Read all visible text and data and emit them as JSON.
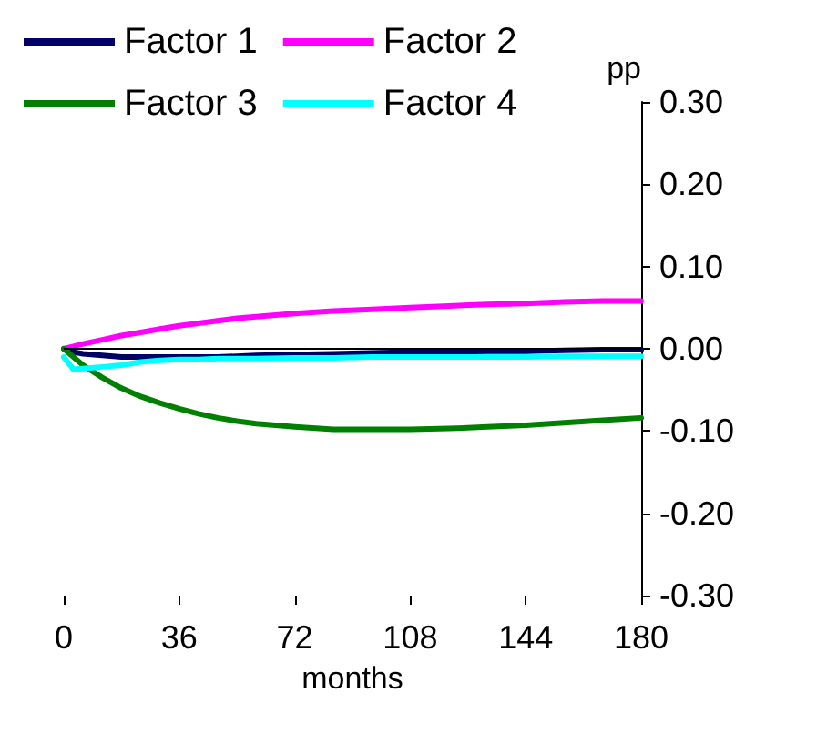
{
  "chart_data": {
    "type": "line",
    "xlabel": "months",
    "ylabel": "pp",
    "x": [
      0,
      3,
      6,
      12,
      18,
      24,
      30,
      36,
      42,
      48,
      54,
      60,
      72,
      84,
      96,
      108,
      120,
      132,
      144,
      156,
      168,
      180
    ],
    "series": [
      {
        "name": "Factor 1",
        "color": "#000066",
        "values": [
          0,
          -0.004,
          -0.006,
          -0.008,
          -0.01,
          -0.01,
          -0.01,
          -0.01,
          -0.01,
          -0.01,
          -0.009,
          -0.008,
          -0.007,
          -0.006,
          -0.005,
          -0.004,
          -0.004,
          -0.003,
          -0.003,
          -0.002,
          -0.001,
          -0.001
        ]
      },
      {
        "name": "Factor 2",
        "color": "#ff00ff",
        "values": [
          0,
          0.003,
          0.006,
          0.011,
          0.016,
          0.02,
          0.024,
          0.028,
          0.031,
          0.034,
          0.037,
          0.039,
          0.043,
          0.046,
          0.048,
          0.05,
          0.052,
          0.054,
          0.055,
          0.057,
          0.058,
          0.058
        ]
      },
      {
        "name": "Factor 3",
        "color": "#008000",
        "values": [
          0,
          -0.01,
          -0.02,
          -0.035,
          -0.048,
          -0.058,
          -0.066,
          -0.073,
          -0.079,
          -0.084,
          -0.088,
          -0.091,
          -0.095,
          -0.098,
          -0.098,
          -0.098,
          -0.097,
          -0.095,
          -0.093,
          -0.09,
          -0.087,
          -0.084
        ]
      },
      {
        "name": "Factor 4",
        "color": "#00ffff",
        "values": [
          -0.01,
          -0.025,
          -0.024,
          -0.022,
          -0.02,
          -0.016,
          -0.014,
          -0.013,
          -0.013,
          -0.012,
          -0.012,
          -0.012,
          -0.011,
          -0.011,
          -0.01,
          -0.01,
          -0.01,
          -0.01,
          -0.01,
          -0.009,
          -0.009,
          -0.009
        ]
      }
    ],
    "xlim": [
      0,
      180
    ],
    "xticks": [
      0,
      36,
      72,
      108,
      144,
      180
    ],
    "ylim": [
      -0.3,
      0.3
    ],
    "yticks": [
      {
        "value": -0.3,
        "label": "-0.30"
      },
      {
        "value": -0.2,
        "label": "-0.20"
      },
      {
        "value": -0.1,
        "label": "-0.10"
      },
      {
        "value": 0,
        "label": "0.00"
      },
      {
        "value": 0.1,
        "label": "0.10"
      },
      {
        "value": 0.2,
        "label": "0.20"
      },
      {
        "value": 0.3,
        "label": "0.30"
      }
    ],
    "ref_lines": [
      {
        "axis": "y",
        "value": 0,
        "color": "#000000",
        "line_style": "solid"
      }
    ],
    "grid": false,
    "legend": "top",
    "marker": "none",
    "line_style": "solid"
  }
}
